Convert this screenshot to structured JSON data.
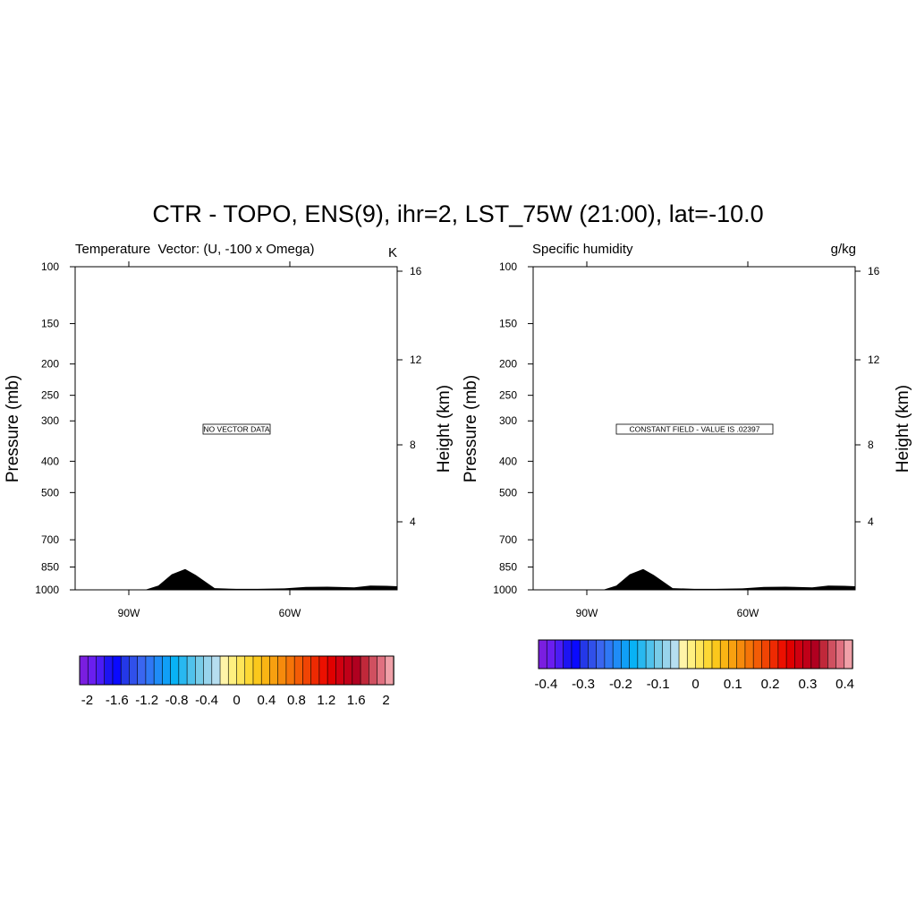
{
  "title": "CTR - TOPO, ENS(9), ihr=2, LST_75W (21:00), lat=-10.0",
  "panels": [
    {
      "left_title": "Temperature",
      "center_title": "Vector: (U, -100 x Omega)",
      "right_title": "K",
      "message": "NO VECTOR DATA",
      "y_label": "Pressure (mb)",
      "y2_label": "Height (km)",
      "colorbar_labels": [
        "-2",
        "-1.6",
        "-1.2",
        "-0.8",
        "-0.4",
        "0",
        "0.4",
        "0.8",
        "1.2",
        "1.6",
        "2"
      ]
    },
    {
      "left_title": "Specific humidity",
      "center_title": "",
      "right_title": "g/kg",
      "message": "CONSTANT FIELD - VALUE IS .02397",
      "y_label": "Pressure (mb)",
      "y2_label": "Height (km)",
      "colorbar_labels": [
        "-0.4",
        "-0.3",
        "-0.2",
        "-0.1",
        "0",
        "0.1",
        "0.2",
        "0.3",
        "0.4"
      ]
    }
  ],
  "chart_data": [
    {
      "type": "heatmap",
      "title": "Temperature",
      "units": "K",
      "message": "NO VECTOR DATA",
      "xlim": [
        -100,
        -40
      ],
      "x_ticks": [
        {
          "value": -90,
          "label": "90W"
        },
        {
          "value": -60,
          "label": "60W"
        }
      ],
      "ylabel": "Pressure (mb)",
      "ylim": [
        1000,
        100
      ],
      "y_scale": "log",
      "y_ticks": [
        100,
        150,
        200,
        250,
        300,
        400,
        500,
        700,
        850,
        1000
      ],
      "y2label": "Height (km)",
      "y2_ticks": [
        4,
        8,
        12,
        16
      ],
      "colorbar": {
        "min": -2.1,
        "max": 2.1,
        "levels": 42,
        "labels": [
          -2,
          -1.6,
          -1.2,
          -0.8,
          -0.4,
          0,
          0.4,
          0.8,
          1.2,
          1.6,
          2
        ]
      },
      "topography": {
        "lon": [
          -100,
          -93,
          -87,
          -84.5,
          -82,
          -79.5,
          -77.5,
          -74,
          -70,
          -66,
          -61,
          -57,
          -53,
          -48,
          -45,
          -42,
          -40
        ],
        "pressure": [
          1000,
          1000,
          1000,
          970,
          895,
          862,
          900,
          988,
          993,
          993,
          990,
          980,
          978,
          982,
          970,
          972,
          975
        ]
      }
    },
    {
      "type": "heatmap",
      "title": "Specific humidity",
      "units": "g/kg",
      "message": "CONSTANT FIELD - VALUE IS .02397",
      "constant_value": 0.02397,
      "xlim": [
        -100,
        -40
      ],
      "x_ticks": [
        {
          "value": -90,
          "label": "90W"
        },
        {
          "value": -60,
          "label": "60W"
        }
      ],
      "ylabel": "Pressure (mb)",
      "ylim": [
        1000,
        100
      ],
      "y_scale": "log",
      "y_ticks": [
        100,
        150,
        200,
        250,
        300,
        400,
        500,
        700,
        850,
        1000
      ],
      "y2label": "Height (km)",
      "y2_ticks": [
        4,
        8,
        12,
        16
      ],
      "colorbar": {
        "min": -0.42,
        "max": 0.42,
        "levels": 42,
        "labels": [
          -0.4,
          -0.3,
          -0.2,
          -0.1,
          0,
          0.1,
          0.2,
          0.3,
          0.4
        ]
      },
      "topography": {
        "lon": [
          -100,
          -93,
          -87,
          -84.5,
          -82,
          -79.5,
          -77.5,
          -74,
          -70,
          -66,
          -61,
          -57,
          -53,
          -48,
          -45,
          -42,
          -40
        ],
        "pressure": [
          1000,
          1000,
          1000,
          970,
          895,
          862,
          900,
          988,
          993,
          993,
          990,
          980,
          978,
          982,
          970,
          972,
          975
        ]
      }
    }
  ],
  "colormap": [
    "#7a1ee0",
    "#6a1ef0",
    "#4b1df5",
    "#1d14f2",
    "#0a0aff",
    "#2438e8",
    "#3050ea",
    "#3a66f0",
    "#2f78f5",
    "#1f8cf7",
    "#109ff7",
    "#08b2f5",
    "#28b8f0",
    "#50c2ec",
    "#78cce8",
    "#98d4ec",
    "#b6def0",
    "#fff4a8",
    "#fff080",
    "#fee55a",
    "#fdd835",
    "#fbc81c",
    "#fab514",
    "#f8a010",
    "#f68a0c",
    "#f57408",
    "#f35c06",
    "#f04404",
    "#ee2a02",
    "#ec1000",
    "#e00000",
    "#d00010",
    "#c00018",
    "#b00020",
    "#c0283a",
    "#d05060",
    "#e07080",
    "#f0a0a8"
  ]
}
